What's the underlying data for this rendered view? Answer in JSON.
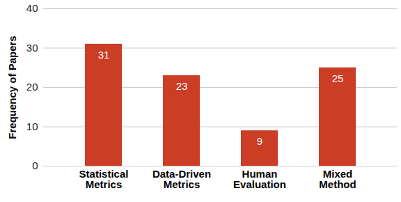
{
  "chart_data": {
    "type": "bar",
    "categories": [
      "Statistical Metrics",
      "Data-Driven Metrics",
      "Human Evaluation",
      "Mixed Method"
    ],
    "values": [
      31,
      23,
      9,
      25
    ],
    "color": "#cc3d26",
    "y_label": "Frequency of Papers",
    "ylim": [
      0,
      40
    ],
    "yticks": [
      0,
      10,
      20,
      30,
      40
    ],
    "grid": true,
    "data_labels": true
  }
}
